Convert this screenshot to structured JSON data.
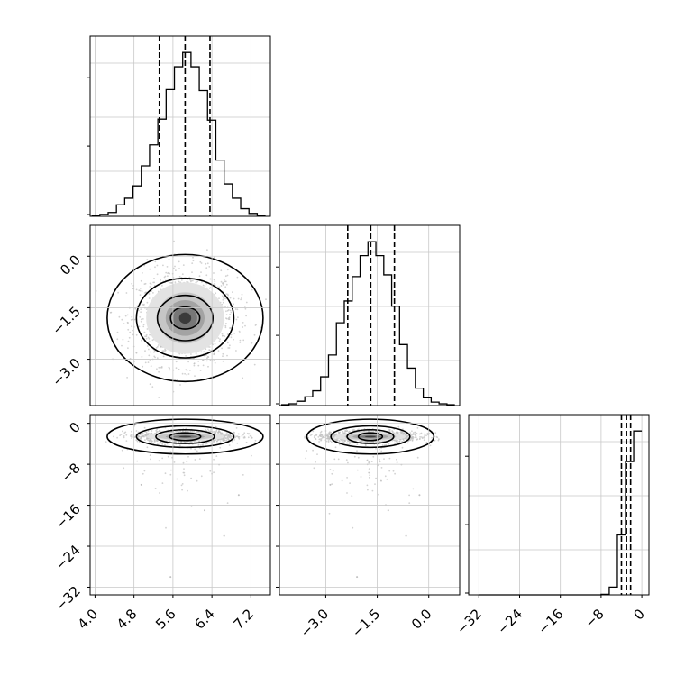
{
  "chart_data": {
    "type": "corner",
    "variables": [
      {
        "xlim": [
          3.9,
          7.6
        ],
        "ticks": [
          4.0,
          4.8,
          5.6,
          6.4,
          7.2
        ],
        "tick_labels": [
          "4.0",
          "4.8",
          "5.6",
          "6.4",
          "7.2"
        ],
        "quantiles": [
          5.32,
          5.85,
          6.36
        ],
        "hist": {
          "edges": [
            3.93,
            4.1,
            4.27,
            4.44,
            4.61,
            4.78,
            4.95,
            5.12,
            5.29,
            5.46,
            5.63,
            5.8,
            5.97,
            6.14,
            6.31,
            6.48,
            6.65,
            6.82,
            6.99,
            7.16,
            7.33,
            7.5
          ],
          "counts": [
            1,
            2,
            4,
            12,
            19,
            32,
            53,
            75,
            102,
            133,
            157,
            172,
            157,
            132,
            101,
            59,
            34,
            19,
            8,
            3,
            1
          ]
        }
      },
      {
        "xlim": [
          -4.35,
          0.9
        ],
        "ticks": [
          -3.0,
          -1.5,
          0.0
        ],
        "tick_labels": [
          "−3.0",
          "−1.5",
          "0.0"
        ],
        "quantiles": [
          -2.36,
          -1.69,
          -1.0
        ],
        "hist": {
          "edges": [
            -4.3,
            -4.07,
            -3.84,
            -3.61,
            -3.38,
            -3.15,
            -2.92,
            -2.69,
            -2.46,
            -2.23,
            -2.0,
            -1.77,
            -1.54,
            -1.31,
            -1.08,
            -0.85,
            -0.62,
            -0.39,
            -0.16,
            0.07,
            0.3,
            0.53,
            0.76
          ],
          "counts": [
            1,
            2,
            5,
            10,
            17,
            33,
            58,
            95,
            120,
            148,
            172,
            188,
            172,
            150,
            114,
            70,
            43,
            20,
            9,
            4,
            2,
            1
          ]
        }
      },
      {
        "xlim": [
          -34.0,
          1.4
        ],
        "ticks": [
          -32,
          -24,
          -16,
          -8,
          0
        ],
        "tick_labels": [
          "−32",
          "−24",
          "−16",
          "−8",
          "0"
        ],
        "quantiles": [
          -4.0,
          -3.0,
          -2.2
        ],
        "hist": {
          "edges": [
            -32.0,
            -30.4,
            -28.8,
            -27.2,
            -25.6,
            -24.0,
            -22.4,
            -20.8,
            -19.2,
            -17.6,
            -16.0,
            -14.4,
            -12.8,
            -11.2,
            -9.6,
            -8.0,
            -6.4,
            -4.8,
            -3.2,
            -1.6,
            0.0
          ],
          "counts": [
            0,
            0,
            0,
            0,
            0,
            0,
            0,
            0,
            0,
            0,
            0,
            0,
            0,
            0,
            0,
            1,
            14,
            108,
            240,
            295
          ]
        }
      }
    ],
    "pairs": [
      {
        "row": 1,
        "col": 0,
        "center": [
          5.85,
          -1.8
        ],
        "sigma": [
          0.5,
          0.65
        ],
        "ylim": [
          -4.35,
          0.9
        ],
        "yticks": [
          0.0,
          -1.5,
          -3.0
        ],
        "ytick_labels": [
          "0.0",
          "−1.5",
          "−3.0"
        ],
        "levels": [
          [
            0.3,
            0.32
          ],
          [
            0.57,
            0.66
          ],
          [
            1.0,
            1.16
          ],
          [
            1.6,
            1.85
          ]
        ]
      },
      {
        "row": 2,
        "col": 0,
        "center": [
          5.85,
          -2.6
        ],
        "sigma": [
          0.5,
          0.55
        ],
        "ylim": [
          -33.5,
          1.7
        ],
        "yticks": [
          0,
          -8,
          -16,
          -24,
          -32
        ],
        "ytick_labels": [
          "0",
          "−8",
          "−16",
          "−24",
          "−32"
        ],
        "levels": [
          [
            0.32,
            0.75
          ],
          [
            0.6,
            1.35
          ],
          [
            1.0,
            2.1
          ],
          [
            1.6,
            3.4
          ]
        ]
      },
      {
        "row": 2,
        "col": 1,
        "center": [
          -1.7,
          -2.6
        ],
        "sigma": [
          0.65,
          0.55
        ],
        "ylim": [
          -33.5,
          1.7
        ],
        "yticks": [
          0,
          -8,
          -16,
          -24,
          -32
        ],
        "ytick_labels": [
          "0",
          "−8",
          "−16",
          "−24",
          "−32"
        ],
        "levels": [
          [
            0.35,
            0.75
          ],
          [
            0.68,
            1.35
          ],
          [
            1.15,
            2.1
          ],
          [
            1.85,
            3.4
          ]
        ]
      }
    ],
    "grid": true,
    "colors": {
      "hist": "#000000",
      "contour": "#000000",
      "scatter": "#bfbfbf",
      "grid": "#c8c8c8"
    }
  }
}
